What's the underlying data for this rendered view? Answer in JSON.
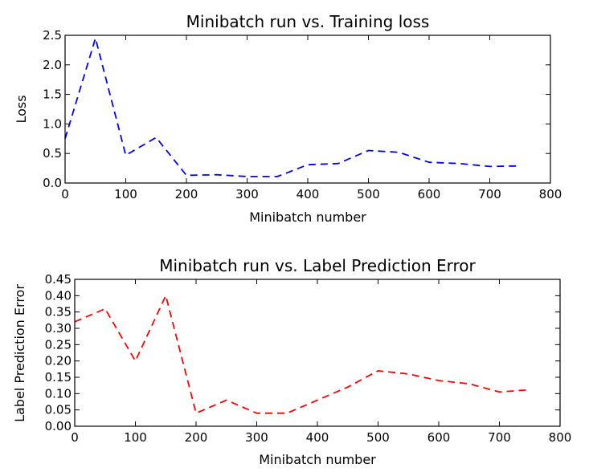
{
  "chart_data": [
    {
      "type": "line",
      "title": "Minibatch run vs. Training loss",
      "xlabel": "Minibatch number",
      "ylabel": "Loss",
      "xlim": [
        0,
        800
      ],
      "ylim": [
        0,
        2.5
      ],
      "xticks": [
        "0",
        "100",
        "200",
        "300",
        "400",
        "500",
        "600",
        "700",
        "800"
      ],
      "yticks": [
        "0.0",
        "0.5",
        "1.0",
        "1.5",
        "2.0",
        "2.5"
      ],
      "grid": false,
      "series": [
        {
          "color": "#0000ff",
          "x": [
            0,
            50,
            100,
            150,
            200,
            250,
            300,
            350,
            400,
            450,
            500,
            550,
            600,
            650,
            700,
            750
          ],
          "y": [
            0.75,
            2.45,
            0.47,
            0.77,
            0.13,
            0.14,
            0.11,
            0.11,
            0.31,
            0.33,
            0.55,
            0.52,
            0.35,
            0.33,
            0.28,
            0.29
          ]
        }
      ]
    },
    {
      "type": "line",
      "title": "Minibatch run vs. Label Prediction Error",
      "xlabel": "Minibatch number",
      "ylabel": "Label Prediction Error",
      "xlim": [
        0,
        800
      ],
      "ylim": [
        0,
        0.45
      ],
      "xticks": [
        "0",
        "100",
        "200",
        "300",
        "400",
        "500",
        "600",
        "700",
        "800"
      ],
      "yticks": [
        "0.00",
        "0.05",
        "0.10",
        "0.15",
        "0.20",
        "0.25",
        "0.30",
        "0.35",
        "0.40",
        "0.45"
      ],
      "grid": false,
      "series": [
        {
          "color": "#ff0000",
          "x": [
            0,
            50,
            100,
            150,
            200,
            250,
            300,
            350,
            400,
            450,
            500,
            550,
            600,
            650,
            700,
            750
          ],
          "y": [
            0.32,
            0.36,
            0.2,
            0.4,
            0.04,
            0.08,
            0.04,
            0.04,
            0.08,
            0.12,
            0.17,
            0.16,
            0.14,
            0.13,
            0.105,
            0.112
          ]
        }
      ]
    }
  ]
}
